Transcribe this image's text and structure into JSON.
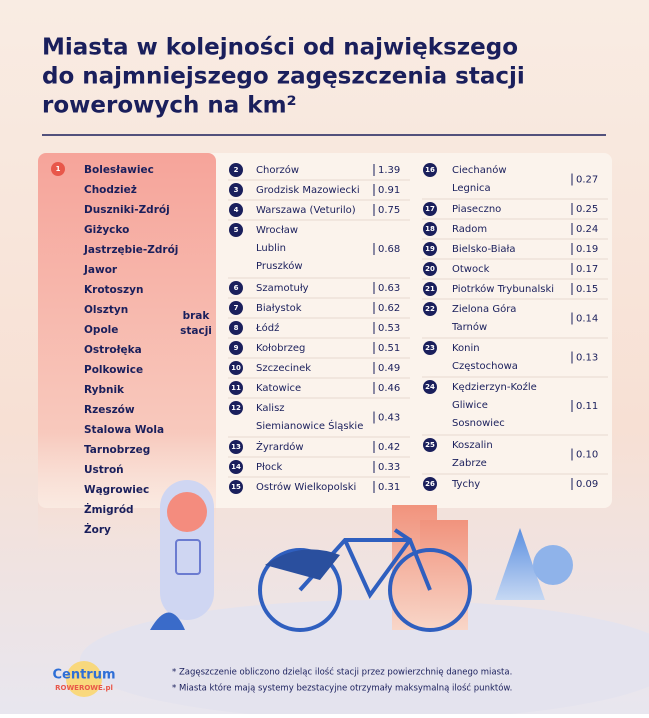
{
  "title_lines": [
    "Miasta w kolejności od największego",
    "do najmniejszego zagęszczenia stacji",
    "rowerowych na km²"
  ],
  "first": {
    "rank": 1,
    "cities": [
      "Bolesławiec",
      "Chodzież",
      "Duszniki-Zdrój",
      "Giżycko",
      "Jastrzębie-Zdrój",
      "Jawor",
      "Krotoszyn",
      "Olsztyn",
      "Opole",
      "Ostrołęka",
      "Polkowice",
      "Rybnik",
      "Rzeszów",
      "Stalowa Wola",
      "Tarnobrzeg",
      "Ustroń",
      "Wągrowiec",
      "Żmigród",
      "Żory"
    ],
    "note": [
      "brak",
      "stacji"
    ]
  },
  "columns": [
    [
      {
        "rank": 2,
        "cities": [
          "Chorzów"
        ],
        "value": "1.39"
      },
      {
        "rank": 3,
        "cities": [
          "Grodzisk Mazowiecki"
        ],
        "value": "0.91"
      },
      {
        "rank": 4,
        "cities": [
          "Warszawa (Veturilo)"
        ],
        "value": "0.75"
      },
      {
        "rank": 5,
        "cities": [
          "Wrocław",
          "Lublin",
          "Pruszków"
        ],
        "value": "0.68"
      },
      {
        "rank": 6,
        "cities": [
          "Szamotuły"
        ],
        "value": "0.63"
      },
      {
        "rank": 7,
        "cities": [
          "Białystok"
        ],
        "value": "0.62"
      },
      {
        "rank": 8,
        "cities": [
          "Łódź"
        ],
        "value": "0.53"
      },
      {
        "rank": 9,
        "cities": [
          "Kołobrzeg"
        ],
        "value": "0.51"
      },
      {
        "rank": 10,
        "cities": [
          "Szczecinek"
        ],
        "value": "0.49"
      },
      {
        "rank": 11,
        "cities": [
          "Katowice"
        ],
        "value": "0.46"
      },
      {
        "rank": 12,
        "cities": [
          "Kalisz",
          "Siemianowice Śląskie"
        ],
        "value": "0.43"
      },
      {
        "rank": 13,
        "cities": [
          "Żyrardów"
        ],
        "value": "0.42"
      },
      {
        "rank": 14,
        "cities": [
          "Płock"
        ],
        "value": "0.33"
      },
      {
        "rank": 15,
        "cities": [
          "Ostrów Wielkopolski"
        ],
        "value": "0.31"
      }
    ],
    [
      {
        "rank": 16,
        "cities": [
          "Ciechanów",
          "Legnica"
        ],
        "value": "0.27"
      },
      {
        "rank": 17,
        "cities": [
          "Piaseczno"
        ],
        "value": "0.25"
      },
      {
        "rank": 18,
        "cities": [
          "Radom"
        ],
        "value": "0.24"
      },
      {
        "rank": 19,
        "cities": [
          "Bielsko-Biała"
        ],
        "value": "0.19"
      },
      {
        "rank": 20,
        "cities": [
          "Otwock"
        ],
        "value": "0.17"
      },
      {
        "rank": 21,
        "cities": [
          "Piotrków Trybunalski"
        ],
        "value": "0.15"
      },
      {
        "rank": 22,
        "cities": [
          "Zielona Góra",
          "Tarnów"
        ],
        "value": "0.14"
      },
      {
        "rank": 23,
        "cities": [
          "Konin",
          "Częstochowa"
        ],
        "value": "0.13"
      },
      {
        "rank": 24,
        "cities": [
          "Kędzierzyn-Koźle",
          "Gliwice",
          "Sosnowiec"
        ],
        "value": "0.11"
      },
      {
        "rank": 25,
        "cities": [
          "Koszalin",
          "Zabrze"
        ],
        "value": "0.10"
      },
      {
        "rank": 26,
        "cities": [
          "Tychy"
        ],
        "value": "0.09"
      }
    ]
  ],
  "footnotes": [
    "* Zagęszczenie obliczono dzieląc ilość stacji przez powierzchnię danego miasta.",
    "* Miasta które mają systemy bezstacyjne otrzymały maksymalną ilość punktów."
  ],
  "logo": {
    "name": "Centrum",
    "domain": "ROWEROWE.pl"
  }
}
